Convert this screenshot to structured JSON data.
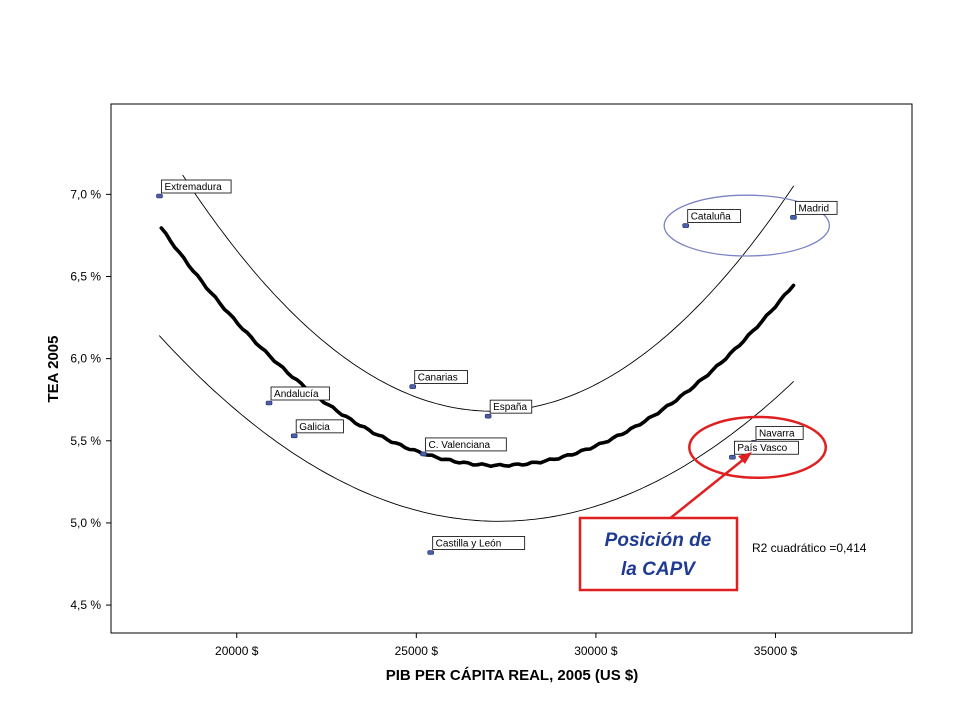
{
  "chart_data": {
    "type": "scatter",
    "xlabel": "PIB PER CÁPITA REAL, 2005 (US $)",
    "ylabel": "TEA 2005",
    "xlim": [
      16500,
      38800
    ],
    "ylim": [
      4.33,
      7.55
    ],
    "x_ticks": [
      {
        "value": 20000,
        "label": "20000 $"
      },
      {
        "value": 25000,
        "label": "25000 $"
      },
      {
        "value": 30000,
        "label": "30000 $"
      },
      {
        "value": 35000,
        "label": "35000 $"
      }
    ],
    "y_ticks": [
      {
        "value": 4.5,
        "label": "4,5 %"
      },
      {
        "value": 5.0,
        "label": "5,0 %"
      },
      {
        "value": 5.5,
        "label": "5,5 %"
      },
      {
        "value": 6.0,
        "label": "6,0 %"
      },
      {
        "value": 6.5,
        "label": "6,5 %"
      },
      {
        "value": 7.0,
        "label": "7,0 %"
      }
    ],
    "points": [
      {
        "name": "Extremadura",
        "x": 17850,
        "y": 6.99
      },
      {
        "name": "Madrid",
        "x": 35500,
        "y": 6.86
      },
      {
        "name": "Cataluña",
        "x": 32500,
        "y": 6.81
      },
      {
        "name": "Canarias",
        "x": 24900,
        "y": 5.83
      },
      {
        "name": "Andalucía",
        "x": 20900,
        "y": 5.73
      },
      {
        "name": "España",
        "x": 27000,
        "y": 5.65
      },
      {
        "name": "Galicia",
        "x": 21600,
        "y": 5.53
      },
      {
        "name": "Navarra",
        "x": 34400,
        "y": 5.49
      },
      {
        "name": "C. Valenciana",
        "x": 25200,
        "y": 5.42
      },
      {
        "name": "País Vasco",
        "x": 33800,
        "y": 5.4
      },
      {
        "name": "Castilla y León",
        "x": 25400,
        "y": 4.82
      }
    ],
    "fit": {
      "type": "quadratic",
      "vertex_x": 27300,
      "vertex_y": 5.35,
      "end_x": 35500,
      "end_y": 6.45,
      "x_range": [
        17900,
        35500
      ]
    },
    "bands": [
      {
        "vertex_x": 27100,
        "vertex_y": 5.68,
        "end_x": 35500,
        "end_y": 7.05,
        "x_range": [
          18500,
          35500
        ]
      },
      {
        "vertex_x": 27300,
        "vertex_y": 5.01,
        "end_x": 35500,
        "end_y": 5.86,
        "x_range": [
          17850,
          35500
        ]
      }
    ],
    "highlights": [
      {
        "center_x": 34200,
        "center_y": 6.81,
        "rx_x": 4600,
        "ry_y": 0.37,
        "color": "#7b83c4"
      },
      {
        "center_x": 34500,
        "center_y": 5.46,
        "rx_x": 3800,
        "ry_y": 0.37,
        "color": "#e02020"
      }
    ],
    "annotation_r2": "R2 cuadrático =0,414",
    "callout": {
      "line1": "Posición de",
      "line2": "la CAPV",
      "border_color": "#e02020",
      "text_color": "#1f3a93"
    },
    "grid": false,
    "legend": "none",
    "colors": {
      "point": "#4a5fa8",
      "fit": "#000000",
      "band": "#000000"
    }
  }
}
